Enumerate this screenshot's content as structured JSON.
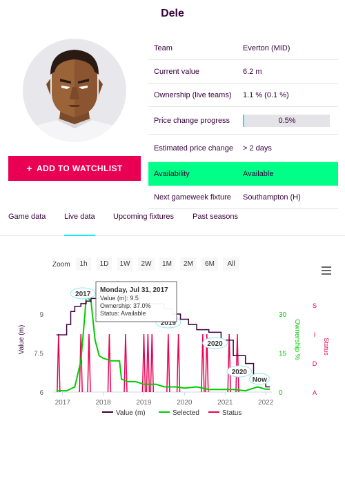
{
  "player": {
    "name": "Dele"
  },
  "watchlist": {
    "plus": "+",
    "label": "ADD TO WATCHLIST"
  },
  "info": {
    "team": {
      "label": "Team",
      "value": "Everton (MID)"
    },
    "current_value": {
      "label": "Current value",
      "value": "6.2 m"
    },
    "ownership": {
      "label": "Ownership (live teams)",
      "value": "1.1 % (0.1 %)"
    },
    "price_change": {
      "label": "Price change progress",
      "value": "0.5%"
    },
    "estimated": {
      "label": "Estimated price change",
      "value": "> 2 days"
    },
    "availability": {
      "label": "Availability",
      "value": "Available"
    },
    "fixture": {
      "label": "Next gameweek fixture",
      "value": "Southampton (H)"
    }
  },
  "tabs": [
    {
      "label": "Game data",
      "active": false
    },
    {
      "label": "Live data",
      "active": true
    },
    {
      "label": "Upcoming fixtures",
      "active": false
    },
    {
      "label": "Past seasons",
      "active": false
    }
  ],
  "zoom": {
    "label": "Zoom",
    "buttons": [
      "1h",
      "1D",
      "1W",
      "2W",
      "1M",
      "2M",
      "6M",
      "All"
    ]
  },
  "colors": {
    "value": "#37003c",
    "selected": "#00cc00",
    "status": "#e90052",
    "availability": "#00ff87",
    "accent": "#05f0ff"
  },
  "chart_data": {
    "type": "line",
    "x_ticks": [
      "2017",
      "2018",
      "2019",
      "2020",
      "2021",
      "2022"
    ],
    "y_left": {
      "label": "Value (m)",
      "ticks": [
        "6",
        "7.5",
        "9"
      ],
      "range": [
        6,
        10
      ]
    },
    "y_right": {
      "label": "Ownership %",
      "ticks": [
        "0",
        "15",
        "30"
      ],
      "range": [
        0,
        40
      ]
    },
    "y_status": {
      "label": "Status",
      "ticks": [
        "A",
        "D",
        "I",
        "S"
      ]
    },
    "series": [
      {
        "name": "Value (m)",
        "color": "#37003c",
        "points": [
          [
            2016.85,
            8.2
          ],
          [
            2017.0,
            8.2
          ],
          [
            2017.1,
            8.6
          ],
          [
            2017.2,
            9.1
          ],
          [
            2017.3,
            9.3
          ],
          [
            2017.45,
            9.4
          ],
          [
            2017.58,
            9.5
          ],
          [
            2017.7,
            9.6
          ],
          [
            2017.9,
            9.8
          ],
          [
            2018.1,
            9.7
          ],
          [
            2018.3,
            9.7
          ],
          [
            2018.6,
            9.7
          ],
          [
            2018.9,
            9.4
          ],
          [
            2019.2,
            9.4
          ],
          [
            2019.5,
            9.2
          ],
          [
            2019.7,
            9.0
          ],
          [
            2019.9,
            8.8
          ],
          [
            2020.1,
            8.6
          ],
          [
            2020.3,
            8.4
          ],
          [
            2020.6,
            8.3
          ],
          [
            2020.9,
            8.0
          ],
          [
            2021.2,
            7.4
          ],
          [
            2021.5,
            7.1
          ],
          [
            2021.7,
            6.6
          ],
          [
            2021.9,
            6.4
          ],
          [
            2022.0,
            6.2
          ],
          [
            2022.1,
            6.2
          ]
        ]
      },
      {
        "name": "Selected",
        "color": "#00cc00",
        "points": [
          [
            2016.85,
            0.5
          ],
          [
            2017.1,
            0.5
          ],
          [
            2017.3,
            2
          ],
          [
            2017.45,
            12
          ],
          [
            2017.55,
            30
          ],
          [
            2017.58,
            37
          ],
          [
            2017.7,
            35
          ],
          [
            2017.8,
            20
          ],
          [
            2017.9,
            14
          ],
          [
            2018.0,
            13
          ],
          [
            2018.2,
            12
          ],
          [
            2018.4,
            12
          ],
          [
            2018.45,
            5
          ],
          [
            2018.6,
            4
          ],
          [
            2018.8,
            4
          ],
          [
            2019.0,
            3
          ],
          [
            2019.3,
            3
          ],
          [
            2019.5,
            2
          ],
          [
            2019.8,
            2
          ],
          [
            2020.0,
            1.5
          ],
          [
            2020.3,
            2
          ],
          [
            2020.6,
            1
          ],
          [
            2020.9,
            1
          ],
          [
            2021.2,
            1
          ],
          [
            2021.5,
            0.5
          ],
          [
            2021.8,
            2
          ],
          [
            2022.0,
            1.1
          ],
          [
            2022.1,
            1.1
          ]
        ]
      },
      {
        "name": "Status",
        "color": "#e90052",
        "spikes": [
          2016.9,
          2017.45,
          2017.65,
          2018.15,
          2018.55,
          2019.0,
          2019.1,
          2019.2,
          2019.6,
          2019.85,
          2020.45,
          2020.55,
          2021.1,
          2021.3
        ]
      }
    ],
    "flags": [
      "2017",
      "2019",
      "2020",
      "2020",
      "Now"
    ],
    "tooltip": {
      "date": "Monday, Jul 31, 2017",
      "value": "Value (m): 9.5",
      "ownership": "Ownership: 37.0%",
      "status": "Status: Available"
    },
    "legend": [
      "Value (m)",
      "Selected",
      "Status"
    ]
  }
}
